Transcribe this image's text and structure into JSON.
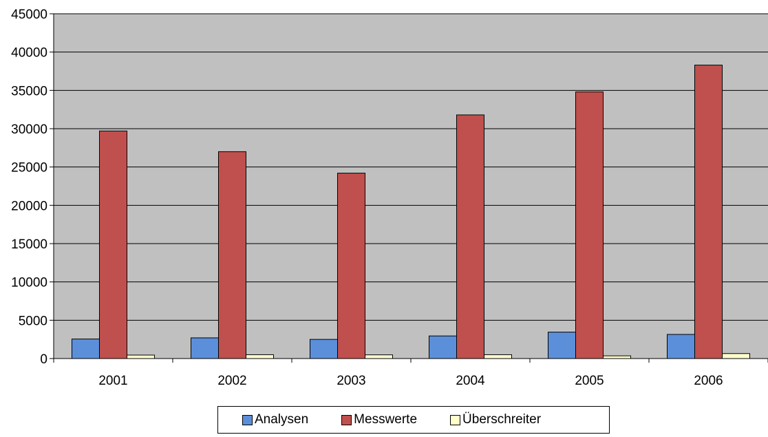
{
  "chart_data": {
    "type": "bar",
    "categories": [
      "2001",
      "2002",
      "2003",
      "2004",
      "2005",
      "2006"
    ],
    "series": [
      {
        "name": "Analysen",
        "values": [
          2550,
          2700,
          2500,
          2950,
          3450,
          3150
        ],
        "color": "#5b8fd9"
      },
      {
        "name": "Messwerte",
        "values": [
          29700,
          27000,
          24200,
          31800,
          34800,
          38300
        ],
        "color": "#c0504d"
      },
      {
        "name": "Überschreiter",
        "values": [
          450,
          500,
          480,
          500,
          350,
          650
        ],
        "color": "#ffffcc"
      }
    ],
    "ylim": [
      0,
      45000
    ],
    "yticks": [
      "0",
      "5000",
      "10000",
      "15000",
      "20000",
      "25000",
      "30000",
      "35000",
      "40000",
      "45000"
    ],
    "grid": true,
    "plot_background": "#c0c0c0",
    "legend_position": "bottom"
  }
}
